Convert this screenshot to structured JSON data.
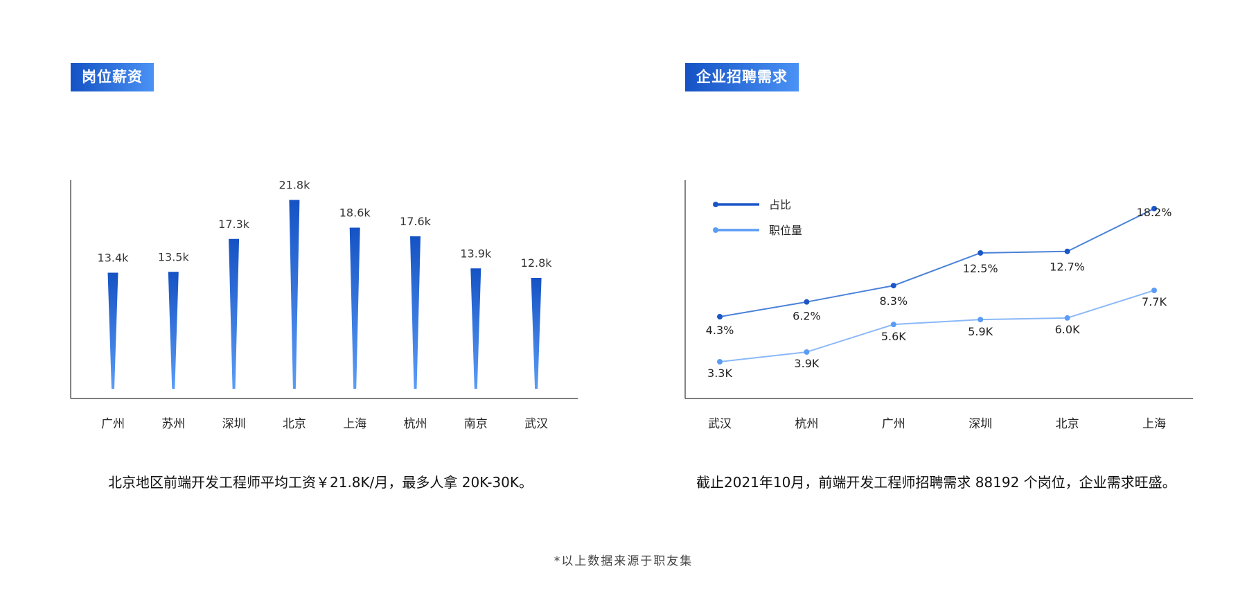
{
  "left": {
    "tag": "岗位薪资",
    "caption": "北京地区前端开发工程师平均工资￥21.8K/月，最多人拿 20K-30K。"
  },
  "right": {
    "tag": "企业招聘需求",
    "caption": "截止2021年10月，前端开发工程师招聘需求 88192 个岗位，企业需求旺盛。"
  },
  "footnote": "*以上数据来源于职友集",
  "colors": {
    "bar_top": "#1552c4",
    "bar_bottom": "#5a9cf6",
    "series1": "#1a56c8",
    "series1_line": "#4a82d8",
    "series2": "#5a9cf6",
    "series2_line": "#8ab8f8",
    "axis": "#333333"
  },
  "chart_data": [
    {
      "type": "bar",
      "categories": [
        "广州",
        "苏州",
        "深圳",
        "北京",
        "上海",
        "杭州",
        "南京",
        "武汉"
      ],
      "values": [
        13.4,
        13.5,
        17.3,
        21.8,
        18.6,
        17.6,
        13.9,
        12.8
      ],
      "value_labels": [
        "13.4k",
        "13.5k",
        "17.3k",
        "21.8k",
        "18.6k",
        "17.6k",
        "13.9k",
        "12.8k"
      ],
      "title": "",
      "xlabel": "",
      "ylabel": "",
      "ylim": [
        0,
        24
      ],
      "grid": false
    },
    {
      "type": "line",
      "categories": [
        "武汉",
        "杭州",
        "广州",
        "深圳",
        "北京",
        "上海"
      ],
      "legend_position": "top-left",
      "grid": false,
      "series": [
        {
          "name": "占比",
          "values": [
            4.3,
            6.2,
            8.3,
            12.5,
            12.7,
            18.2
          ],
          "labels": [
            "4.3%",
            "6.2%",
            "8.3%",
            "12.5%",
            "12.7%",
            "18.2%"
          ]
        },
        {
          "name": "职位量",
          "values": [
            3.3,
            3.9,
            5.6,
            5.9,
            6.0,
            7.7
          ],
          "labels": [
            "3.3K",
            "3.9K",
            "5.6K",
            "5.9K",
            "6.0K",
            "7.7K"
          ]
        }
      ]
    }
  ]
}
